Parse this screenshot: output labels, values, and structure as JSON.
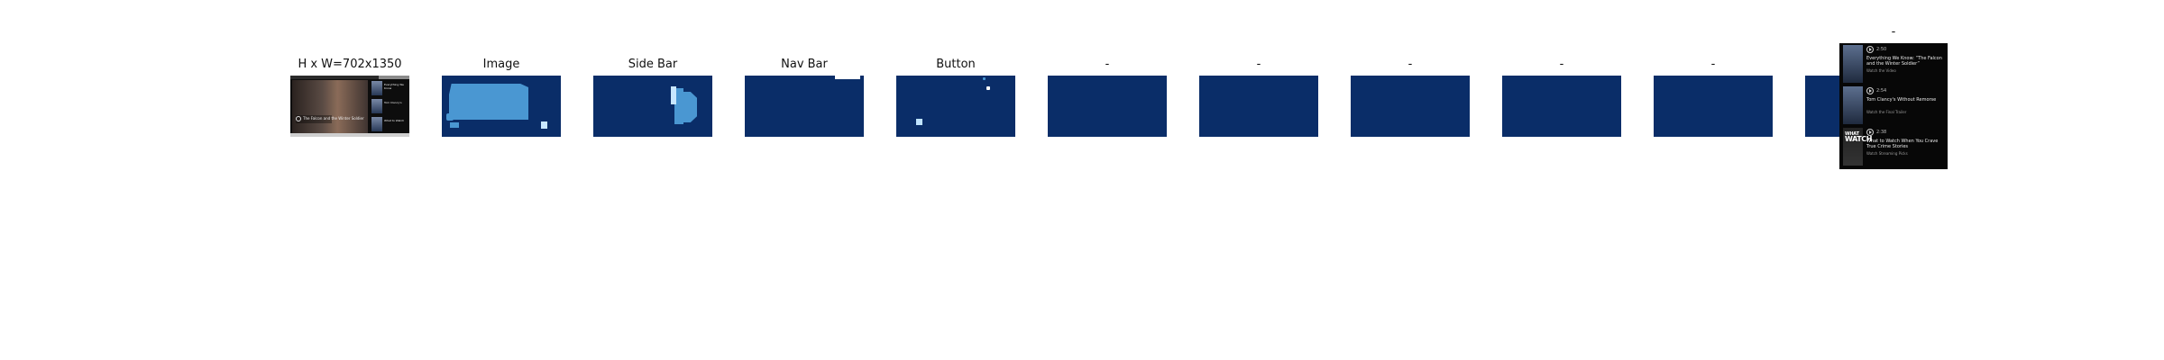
{
  "panels": {
    "shot": {
      "title": "H x W=702x1350",
      "hero_title": "The Falcon and the Winter Soldier",
      "side_items": [
        "Everything We Know",
        "Tom Clancy's",
        "What to Watch"
      ]
    },
    "image": {
      "title": "Image"
    },
    "sidebar": {
      "title": "Side Bar"
    },
    "navbar": {
      "title": "Nav Bar"
    },
    "button": {
      "title": "Button"
    },
    "empty": [
      {
        "title": "-"
      },
      {
        "title": "-"
      },
      {
        "title": "-"
      },
      {
        "title": "-"
      },
      {
        "title": "-"
      },
      {
        "title": "-"
      }
    ]
  },
  "crop": {
    "title": "-",
    "items": [
      {
        "time": "2:50",
        "heading": "Everything We Know: “The Falcon and the Winter Soldier”",
        "sub": "Watch the Video",
        "thumb_lines": [
          "",
          ""
        ]
      },
      {
        "time": "2:54",
        "heading": "Tom Clancy's Without Remorse",
        "sub": "Watch the Final Trailer",
        "thumb_lines": [
          "",
          ""
        ]
      },
      {
        "time": "2:38",
        "heading": "What to Watch When You Crave True Crime Stories",
        "sub": "Watch Streaming Picks",
        "thumb_lines": [
          "WHAT",
          "WATCH"
        ]
      }
    ]
  },
  "colors": {
    "panel_bg": "#0a2d68",
    "mask_blue": "#4a97d2",
    "mask_light": "#c8e7ff"
  }
}
